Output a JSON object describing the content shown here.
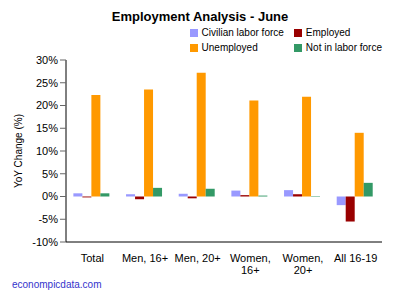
{
  "chart_data": {
    "type": "bar",
    "title": "Employment Analysis - June",
    "y_label": "YoY Change (%)",
    "annotations": [
      "econompicdata.com"
    ],
    "categories": [
      "Total",
      "Men, 16+",
      "Men, 20+",
      "Women, 16+",
      "Women, 20+",
      "All 16-19"
    ],
    "series": [
      {
        "name": "Civilian labor force",
        "color": "#9999ff",
        "values": [
          0.7,
          0.5,
          0.6,
          1.3,
          1.4,
          -1.9
        ]
      },
      {
        "name": "Employed",
        "color": "#990000",
        "values": [
          -0.2,
          -0.6,
          -0.4,
          0.3,
          0.5,
          -5.5
        ]
      },
      {
        "name": "Unemployed",
        "color": "#ff9900",
        "values": [
          22.3,
          23.5,
          27.2,
          21.1,
          21.9,
          14.0
        ]
      },
      {
        "name": "Not in labor force",
        "color": "#339966",
        "values": [
          0.7,
          1.9,
          1.7,
          0.2,
          0.1,
          3.0
        ]
      }
    ],
    "ylim": [
      -10,
      30
    ],
    "yticks": [
      {
        "value": -10,
        "label": "-10%"
      },
      {
        "value": -5,
        "label": "-5%"
      },
      {
        "value": 0,
        "label": "0%"
      },
      {
        "value": 5,
        "label": "5%"
      },
      {
        "value": 10,
        "label": "10%"
      },
      {
        "value": 15,
        "label": "15%"
      },
      {
        "value": 20,
        "label": "20%"
      },
      {
        "value": 25,
        "label": "25%"
      },
      {
        "value": 30,
        "label": "30%"
      }
    ],
    "grid": false,
    "legend": "upper right"
  }
}
